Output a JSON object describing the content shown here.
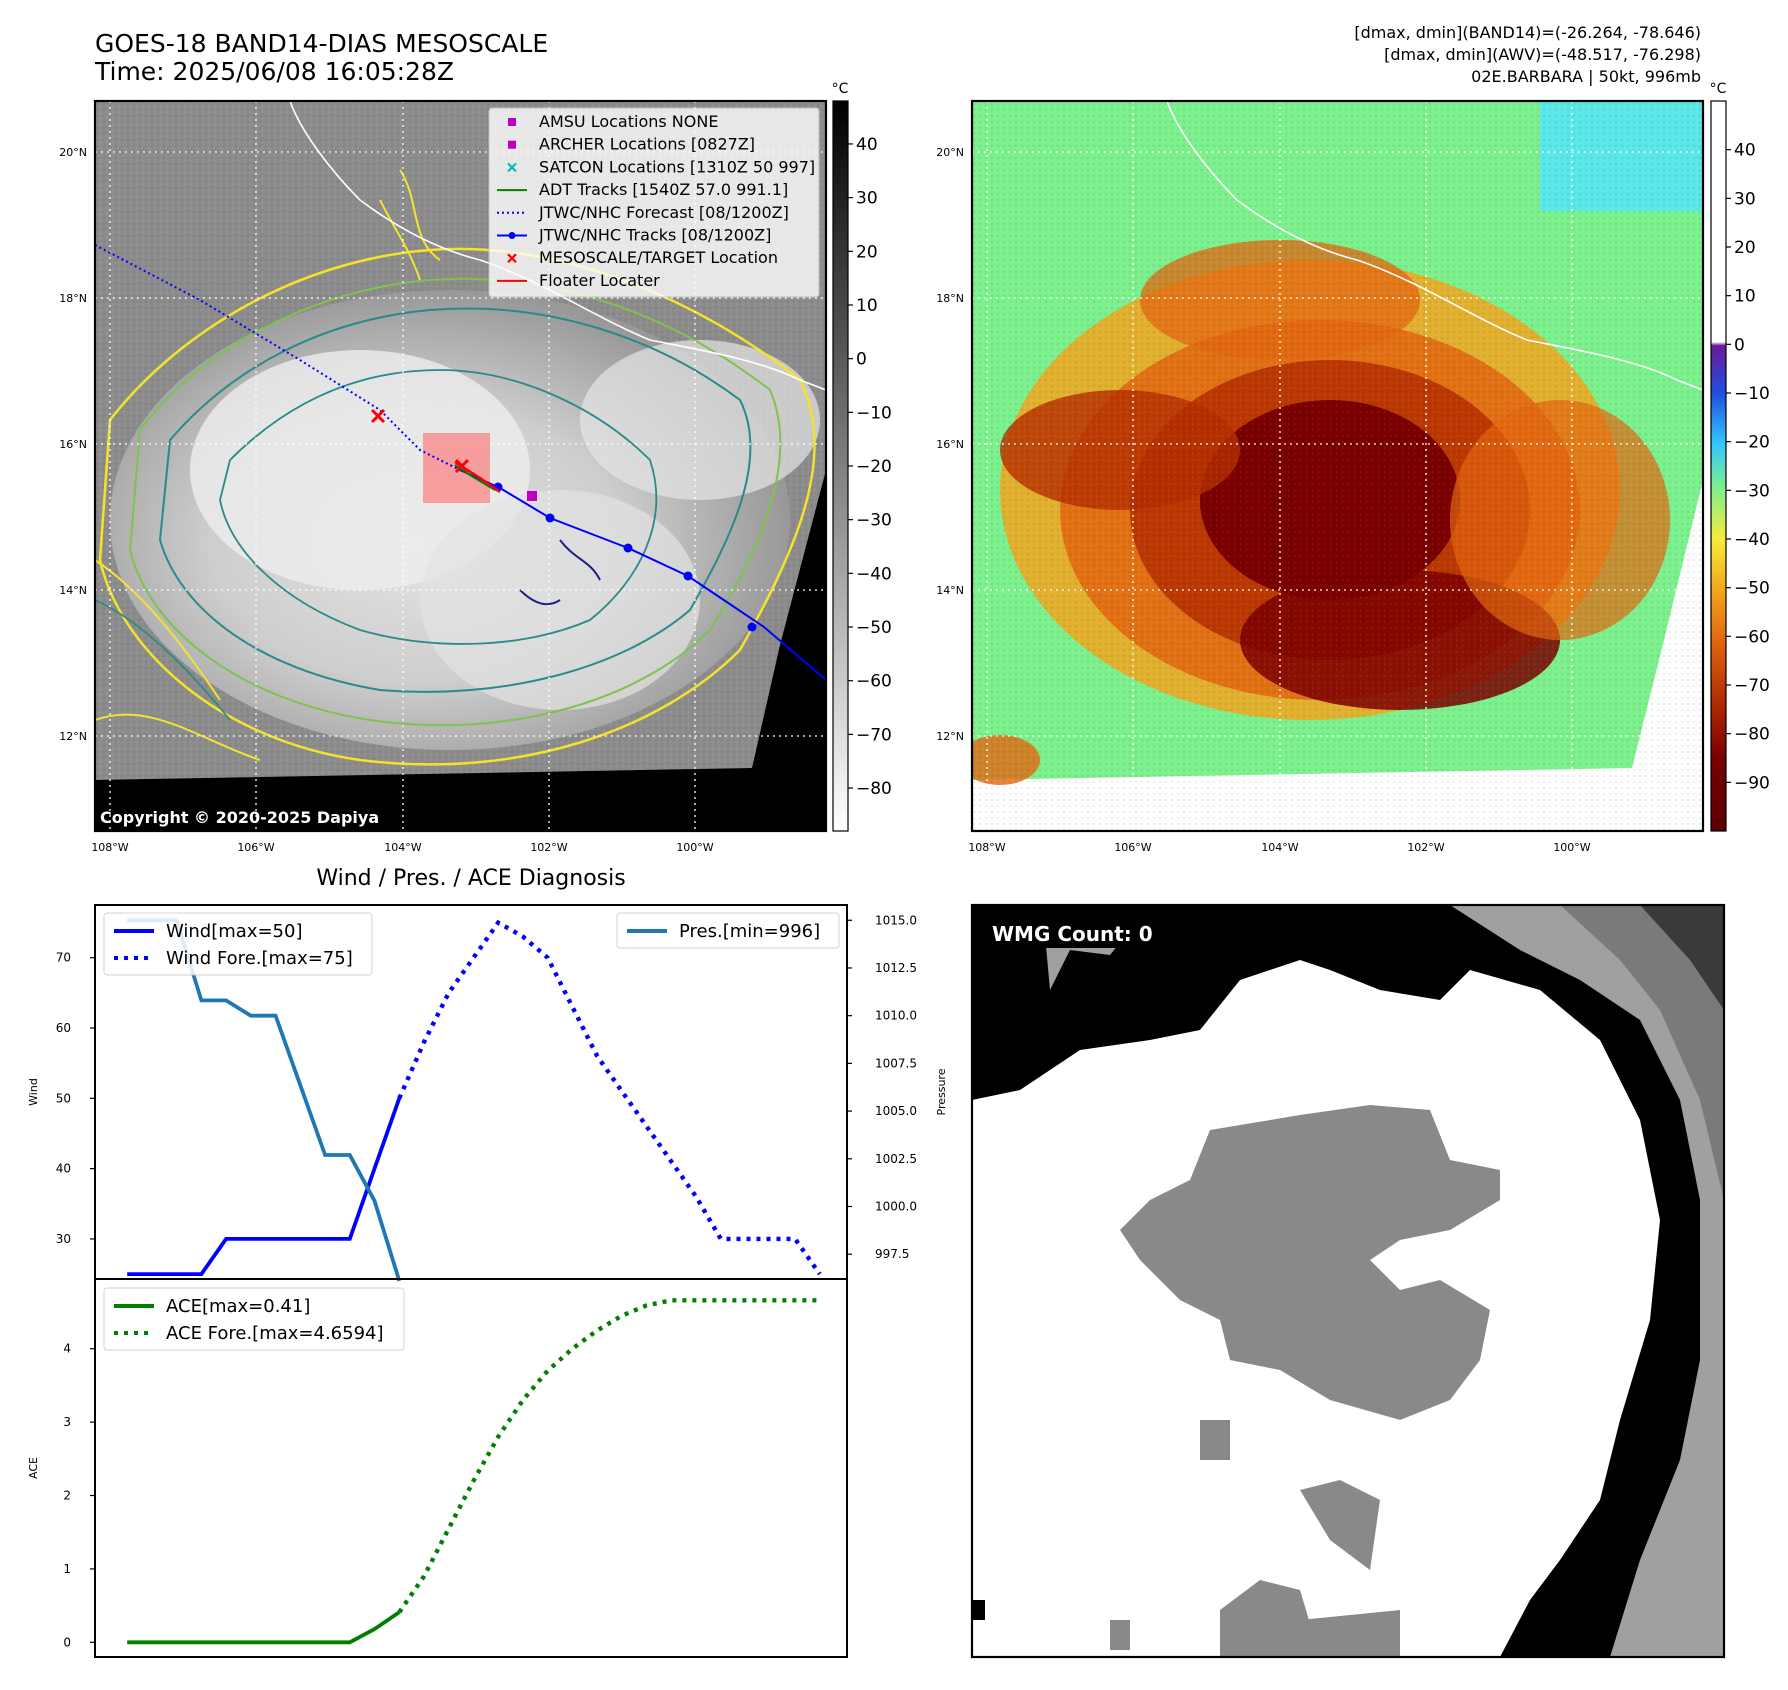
{
  "header": {
    "title": "GOES-18 BAND14-DIAS MESOSCALE",
    "time": "Time: 2025/06/08 16:05:28Z",
    "range_band14": "[dmax, dmin](BAND14)=(-26.264, -78.646)",
    "range_awv": "[dmax, dmin](AWV)=(-48.517, -76.298)",
    "storm": "02E.BARBARA | 50kt, 996mb"
  },
  "map_axes": {
    "lon_ticks": [
      "108°W",
      "106°W",
      "104°W",
      "102°W",
      "100°W"
    ],
    "lat_ticks": [
      "20°N",
      "18°N",
      "16°N",
      "14°N",
      "12°N"
    ]
  },
  "colorbar_left": {
    "unit": "°C",
    "ticks": [
      "40",
      "30",
      "20",
      "10",
      "0",
      "−10",
      "−20",
      "−30",
      "−40",
      "−50",
      "−60",
      "−70",
      "−80"
    ]
  },
  "colorbar_right": {
    "unit": "°C",
    "ticks": [
      "40",
      "30",
      "20",
      "10",
      "0",
      "−10",
      "−20",
      "−30",
      "−40",
      "−50",
      "−60",
      "−70",
      "−80",
      "−90"
    ]
  },
  "legend_map": [
    {
      "label": "AMSU Locations NONE",
      "marker": "square",
      "color": "#c000c0"
    },
    {
      "label": "ARCHER Locations [0827Z]",
      "marker": "square",
      "color": "#c000c0"
    },
    {
      "label": "SATCON Locations [1310Z 50 997]",
      "marker": "x",
      "color": "#00bcbc"
    },
    {
      "label": "ADT Tracks [1540Z 57.0 991.1]",
      "marker": "line",
      "color": "#008000"
    },
    {
      "label": "JTWC/NHC Forecast [08/1200Z]",
      "marker": "dotted",
      "color": "#0000ff"
    },
    {
      "label": "JTWC/NHC Tracks [08/1200Z]",
      "marker": "line-dot",
      "color": "#0000ff"
    },
    {
      "label": "MESOSCALE/TARGET Location",
      "marker": "x",
      "color": "#ff0000"
    },
    {
      "label": "Floater Locater",
      "marker": "line",
      "color": "#ff0000"
    }
  ],
  "copyright": "Copyright © 2020-2025 Dapiya",
  "diagnosis_title": "Wind / Pres. / ACE Diagnosis",
  "wmg_label": "WMG Count: 0",
  "chart_data": [
    {
      "type": "line",
      "title": "Wind / Pres. / ACE Diagnosis",
      "ylabel": "Wind",
      "y2label": "Pressure",
      "ylim": [
        24.3,
        77.5
      ],
      "y2lim": [
        996.2,
        1015.8
      ],
      "yticks": [
        30,
        40,
        50,
        60,
        70
      ],
      "y2ticks": [
        997.5,
        1000.0,
        1002.5,
        1005.0,
        1007.5,
        1010.0,
        1012.5,
        1015.0
      ],
      "series": [
        {
          "name": "Wind[max=50]",
          "style": "solid",
          "color": "#0000ff",
          "axis": "left",
          "x": [
            0,
            3,
            4,
            9,
            10,
            11
          ],
          "y": [
            25,
            25,
            30,
            30,
            40,
            50
          ]
        },
        {
          "name": "Wind Fore.[max=75]",
          "style": "dotted",
          "color": "#0000ff",
          "axis": "left",
          "x": [
            11,
            12,
            13,
            14,
            15,
            16,
            17,
            18,
            19,
            20,
            21,
            22,
            23,
            24,
            25,
            26,
            27,
            28
          ],
          "y": [
            50,
            58,
            65,
            70,
            75,
            73,
            70,
            63,
            56,
            51,
            46,
            41,
            36,
            30,
            30,
            30,
            30,
            25
          ]
        },
        {
          "name": "Pres.[min=996]",
          "style": "solid",
          "color": "#1f77b4",
          "axis": "right",
          "x": [
            0,
            2,
            3,
            4,
            5,
            6,
            8,
            9,
            10,
            11
          ],
          "y": [
            1015,
            1015,
            1010.8,
            1010.8,
            1010,
            1010,
            1002.7,
            1002.7,
            1000.3,
            996.1
          ]
        }
      ]
    },
    {
      "type": "line",
      "ylabel": "ACE",
      "ylim": [
        -0.2,
        4.95
      ],
      "yticks": [
        0,
        1,
        2,
        3,
        4
      ],
      "series": [
        {
          "name": "ACE[max=0.41]",
          "style": "solid",
          "color": "#008000",
          "x": [
            0,
            9,
            10,
            11
          ],
          "y": [
            0,
            0,
            0.18,
            0.41
          ]
        },
        {
          "name": "ACE Fore.[max=4.6594]",
          "style": "dotted",
          "color": "#008000",
          "x": [
            11,
            12,
            13,
            14,
            15,
            16,
            17,
            18,
            19,
            20,
            21,
            22,
            23,
            24,
            25,
            26,
            27,
            28
          ],
          "y": [
            0.41,
            0.9,
            1.55,
            2.2,
            2.8,
            3.3,
            3.7,
            4.0,
            4.25,
            4.45,
            4.59,
            4.66,
            4.66,
            4.66,
            4.66,
            4.66,
            4.66,
            4.66
          ]
        }
      ]
    }
  ],
  "colors": {
    "ir_bg": "#8c8c8c",
    "cloud_cold": "#e9e9e9",
    "contour_yellow": "#f2e32b",
    "contour_teal": "#2a8a8a",
    "contour_green": "#7fc24f",
    "awv_bg": "#7cf08c",
    "awv_dark": "#7a0000",
    "awv_orange": "#e8800c"
  }
}
